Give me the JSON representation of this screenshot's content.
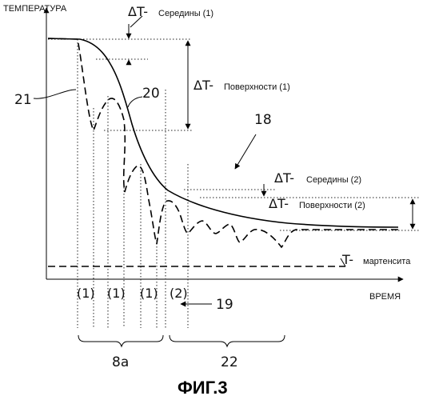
{
  "labels": {
    "y_axis": "ТЕМПЕРАТУРА",
    "x_axis": "ВРЕМЯ",
    "delta_symbol": "ΔT-",
    "core_delta_1": "Середины (1)",
    "surface_delta_1": "Поверхности (1)",
    "core_delta_2": "Середины (2)",
    "surface_delta_2": "Поверхности (2)",
    "martensite_symbol": "T-",
    "martensite": "мартенсита",
    "phase_1a": "(1)",
    "phase_1b": "(1)",
    "phase_1c": "(1)",
    "phase_2": "(2)",
    "figure_caption": "ФИГ.3"
  },
  "refs": {
    "surface_curve": "21",
    "core_curve": "20",
    "assembly": "18",
    "arrow": "19",
    "group_a": "8a",
    "group_b": "22"
  }
}
